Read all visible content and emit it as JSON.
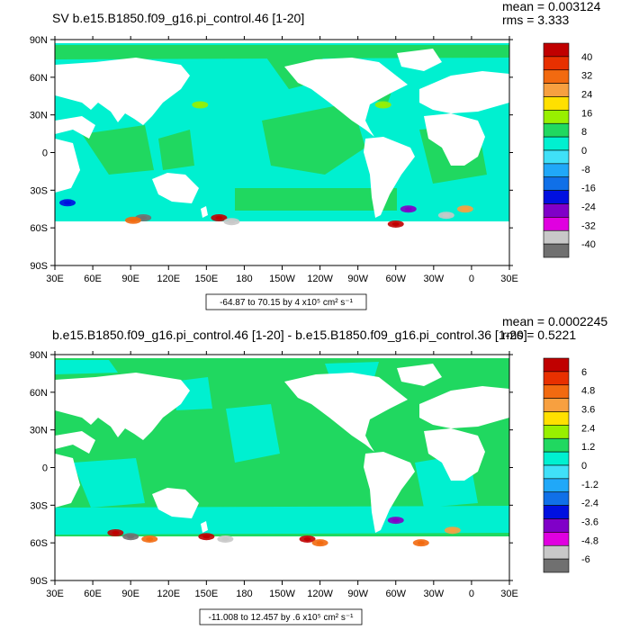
{
  "chart_data": [
    {
      "type": "heatmap",
      "title": "SV b.e15.B1850.f09_g16.pi_control.46 [1-20]",
      "mean_text": "mean = 0.003124",
      "rms_text": "rms = 3.333",
      "range_text": "-64.87 to 70.15 by 4 x10⁵ cm² s⁻¹",
      "x_ticks": [
        "30E",
        "60E",
        "90E",
        "120E",
        "150E",
        "180",
        "150W",
        "120W",
        "90W",
        "60W",
        "30W",
        "0",
        "30E"
      ],
      "y_ticks": [
        "90N",
        "60N",
        "30N",
        "0",
        "30S",
        "60S",
        "90S"
      ],
      "x_range": [
        30,
        390
      ],
      "y_range": [
        -90,
        90
      ],
      "colorbar": {
        "labels": [
          "40",
          "32",
          "24",
          "16",
          "8",
          "0",
          "-8",
          "-16",
          "-24",
          "-32",
          "-40"
        ],
        "colors": [
          "#C00000",
          "#E83000",
          "#F26A10",
          "#F7A040",
          "#FFE000",
          "#98F000",
          "#20D860",
          "#00F0D0",
          "#40E0F8",
          "#20A8F8",
          "#1070E8",
          "#0010E0",
          "#8000C8",
          "#E000E0",
          "#C8C8C8",
          "#707070"
        ]
      },
      "hotspots": [
        {
          "lon": 100,
          "lat": -52,
          "value": -40
        },
        {
          "lon": 92,
          "lat": -54,
          "value": 32
        },
        {
          "lon": 160,
          "lat": -52,
          "value": 40
        },
        {
          "lon": 170,
          "lat": -55,
          "value": -32
        },
        {
          "lon": 300,
          "lat": -57,
          "value": 40
        },
        {
          "lon": 310,
          "lat": -45,
          "value": -24
        },
        {
          "lon": 355,
          "lat": -45,
          "value": 24
        },
        {
          "lon": 340,
          "lat": -50,
          "value": -32
        },
        {
          "lon": 290,
          "lat": 38,
          "value": 16
        },
        {
          "lon": 145,
          "lat": 38,
          "value": 16
        },
        {
          "lon": 40,
          "lat": -40,
          "value": -16
        }
      ]
    },
    {
      "type": "heatmap",
      "title": "b.e15.B1850.f09_g16.pi_control.46 [1-20] - b.e15.B1850.f09_g16.pi_control.36 [1-20]",
      "mean_text": "mean = 0.0002245",
      "rms_text": "rms = 0.5221",
      "range_text": "-11.008 to 12.457 by .6 x10⁵ cm² s⁻¹",
      "x_ticks": [
        "30E",
        "60E",
        "90E",
        "120E",
        "150E",
        "180",
        "150W",
        "120W",
        "90W",
        "60W",
        "30W",
        "0",
        "30E"
      ],
      "y_ticks": [
        "90N",
        "60N",
        "30N",
        "0",
        "30S",
        "60S",
        "90S"
      ],
      "x_range": [
        30,
        390
      ],
      "y_range": [
        -90,
        90
      ],
      "colorbar": {
        "labels": [
          "6",
          "4.8",
          "3.6",
          "2.4",
          "1.2",
          "0",
          "-1.2",
          "-2.4",
          "-3.6",
          "-4.8",
          "-6"
        ],
        "colors": [
          "#C00000",
          "#E83000",
          "#F26A10",
          "#F7A040",
          "#FFE000",
          "#98F000",
          "#20D860",
          "#00F0D0",
          "#40E0F8",
          "#20A8F8",
          "#1070E8",
          "#0010E0",
          "#8000C8",
          "#E000E0",
          "#C8C8C8",
          "#707070"
        ]
      },
      "hotspots": [
        {
          "lon": 78,
          "lat": -52,
          "value": 6
        },
        {
          "lon": 90,
          "lat": -55,
          "value": -6
        },
        {
          "lon": 105,
          "lat": -57,
          "value": 4.8
        },
        {
          "lon": 150,
          "lat": -55,
          "value": 6
        },
        {
          "lon": 165,
          "lat": -57,
          "value": -4.8
        },
        {
          "lon": 230,
          "lat": -57,
          "value": 6
        },
        {
          "lon": 240,
          "lat": -60,
          "value": 4.8
        },
        {
          "lon": 300,
          "lat": -42,
          "value": -3.6
        },
        {
          "lon": 320,
          "lat": -60,
          "value": 4.8
        },
        {
          "lon": 345,
          "lat": -50,
          "value": 3.6
        }
      ]
    }
  ]
}
